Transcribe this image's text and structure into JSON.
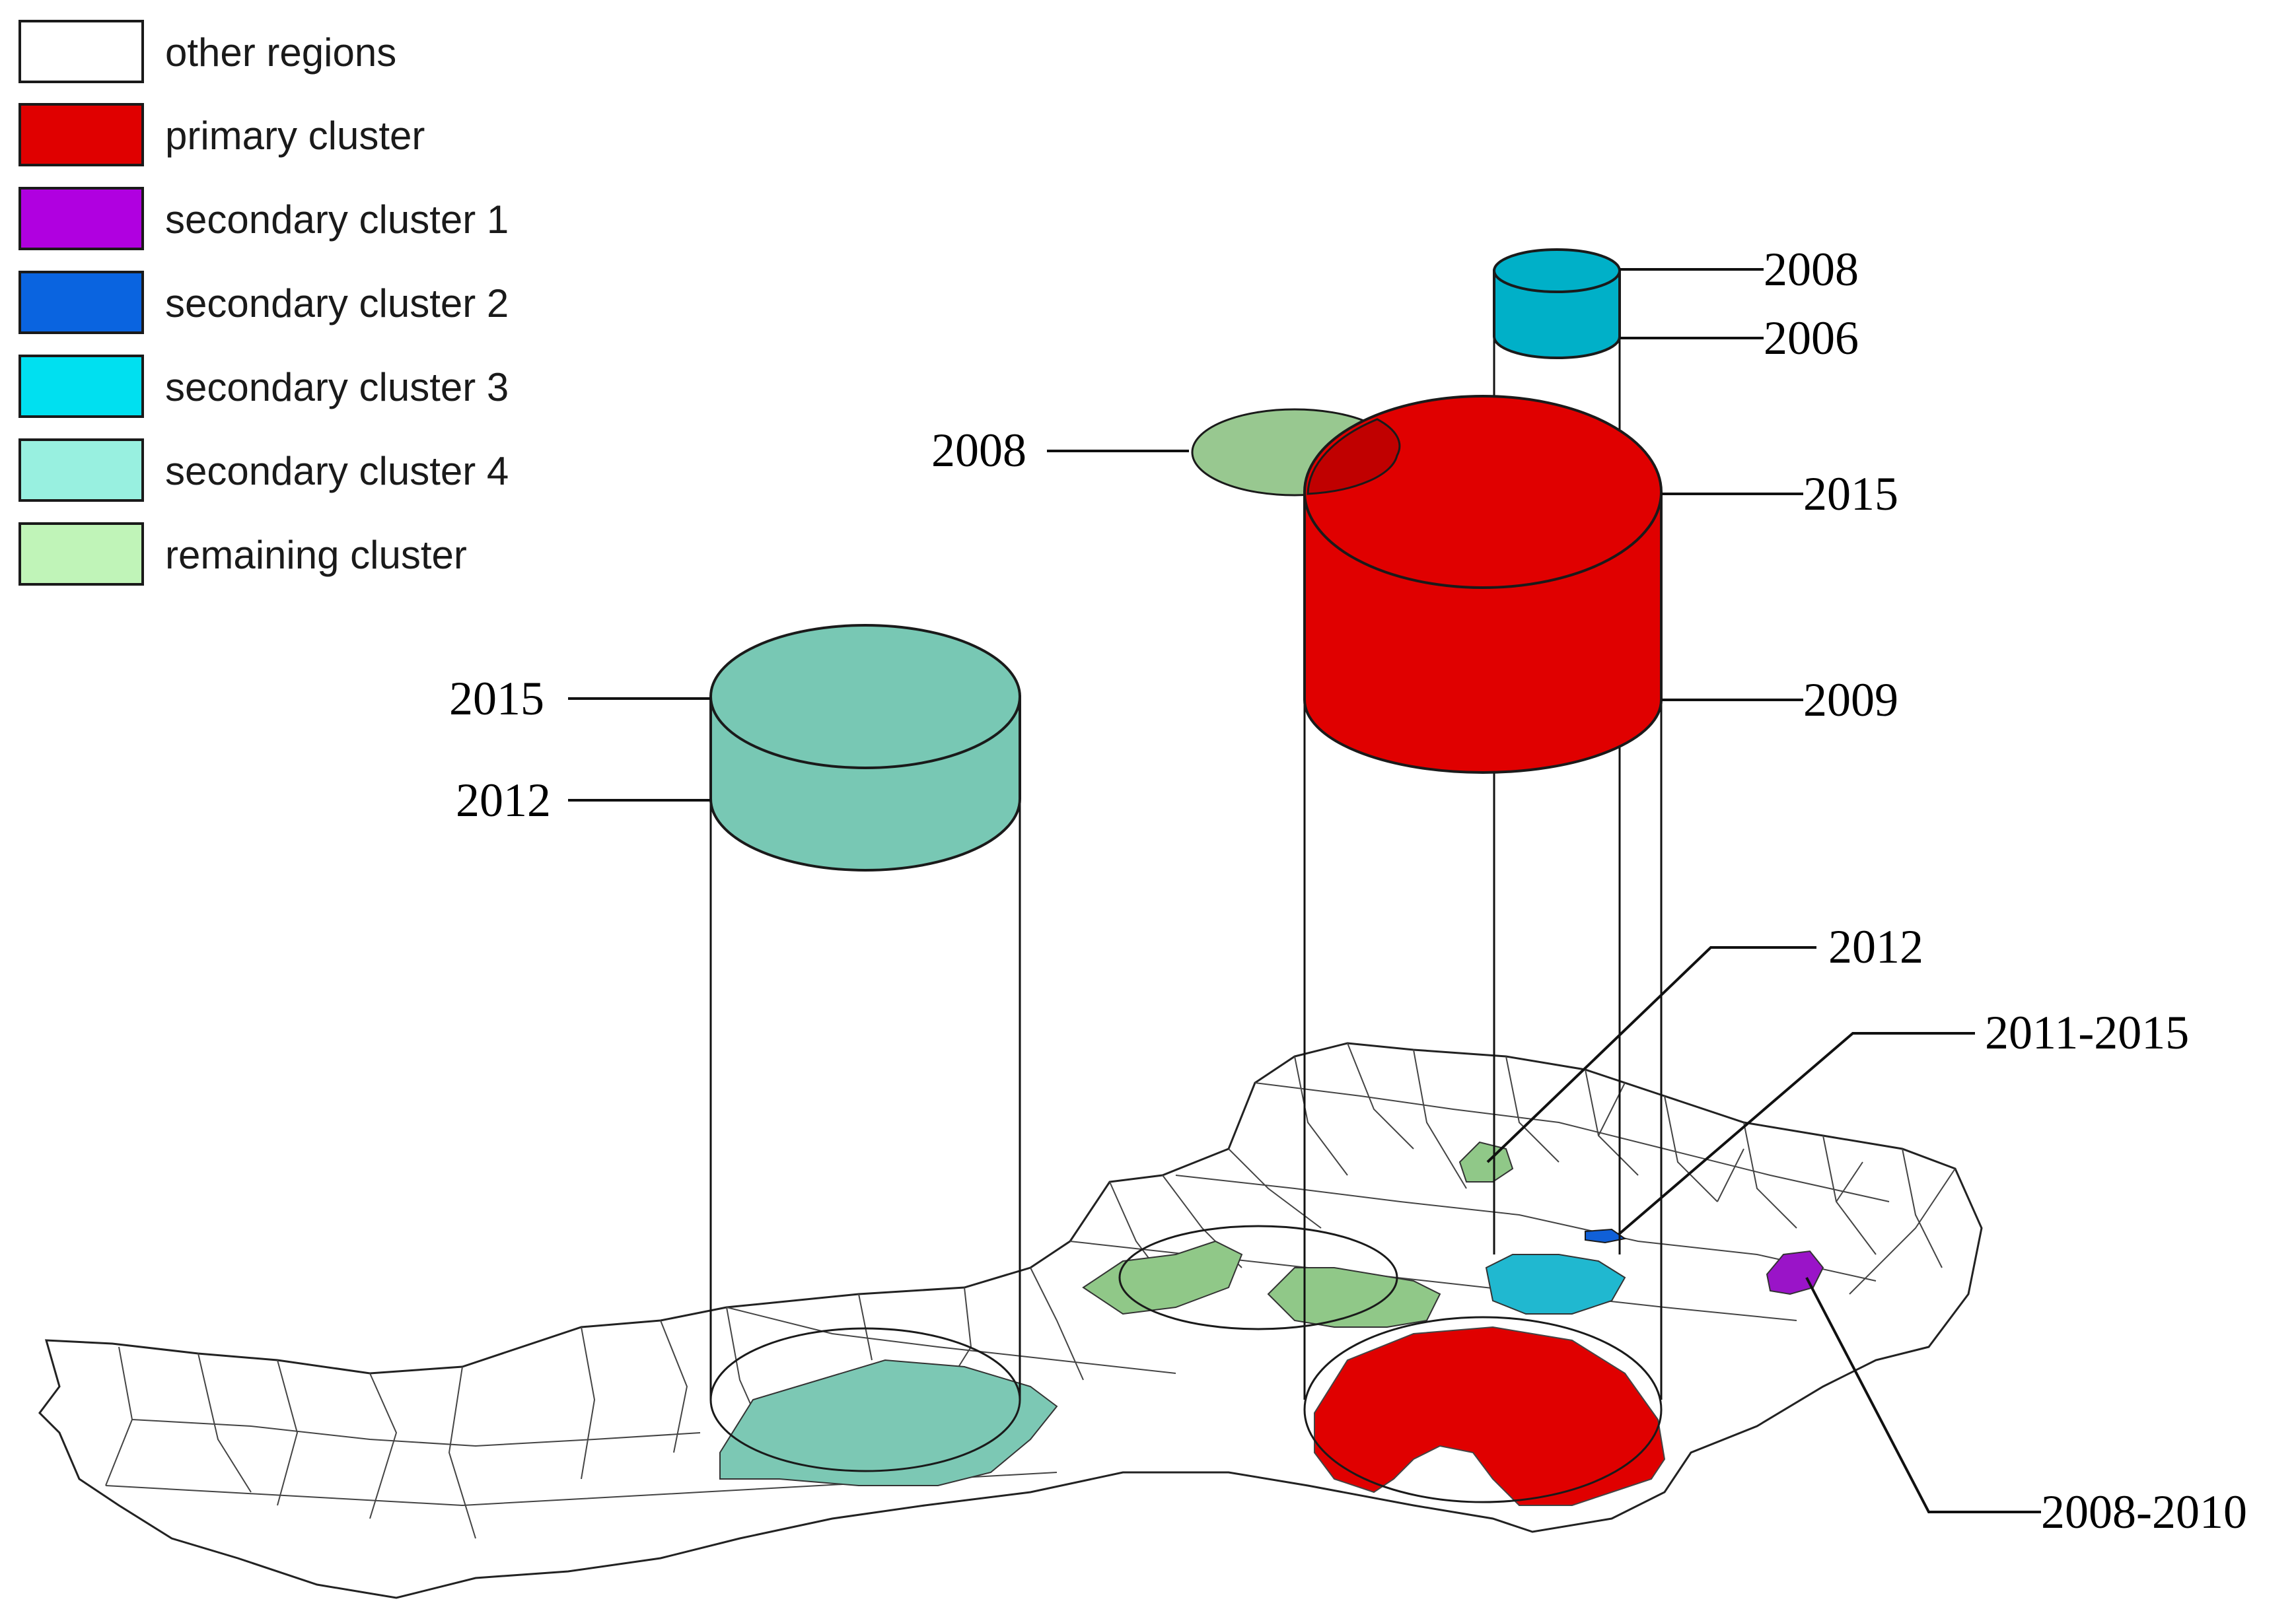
{
  "legend": [
    {
      "label": "other regions",
      "color": "#ffffff"
    },
    {
      "label": "primary cluster",
      "color": "#e00000"
    },
    {
      "label": "secondary cluster 1",
      "color": "#b000e0"
    },
    {
      "label": "secondary cluster 2",
      "color": "#0a64e0"
    },
    {
      "label": "secondary cluster 3",
      "color": "#00e0f0"
    },
    {
      "label": "secondary cluster 4",
      "color": "#98f0e0"
    },
    {
      "label": "remaining cluster",
      "color": "#c0f4b8"
    }
  ],
  "colors": {
    "primary": "#e00000",
    "cluster4_cylinder": "#78c8b4",
    "cluster3_cylinder": "#00b0c8",
    "remaining_cylinder": "#98c890",
    "remaining_map": "#90c888",
    "secondary1_map": "#9a14c8",
    "secondary2_map": "#1060d8",
    "secondary3_map": "#20b8d0",
    "cluster4_map": "#7cc8b4"
  },
  "cylinders": {
    "cluster3": {
      "top": "2008",
      "bottom": "2006"
    },
    "remaining": {
      "label": "2008"
    },
    "primary": {
      "top": "2015",
      "bottom": "2009"
    },
    "cluster4": {
      "top": "2015",
      "bottom": "2012"
    }
  },
  "callouts": {
    "remaining_small": "2012",
    "secondary2": "2011-2015",
    "secondary1": "2008-2010"
  }
}
